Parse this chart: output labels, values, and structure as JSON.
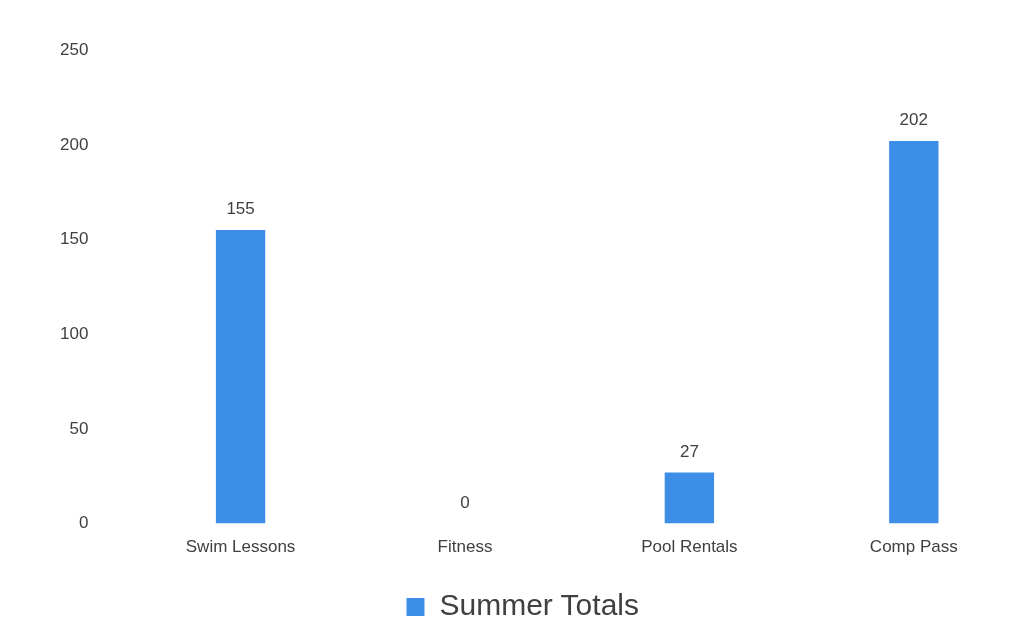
{
  "chart_data": {
    "type": "bar",
    "categories": [
      "Swim Lessons",
      "Fitness",
      "Pool Rentals",
      "Comp Pass"
    ],
    "series": [
      {
        "name": "Summer Totals",
        "color": "#3d8ee6",
        "values": [
          155,
          0,
          27,
          202
        ]
      }
    ],
    "ylim": [
      0,
      250
    ],
    "yticks": [
      0,
      50,
      100,
      150,
      200,
      250
    ],
    "grid": false,
    "legend": "bottom",
    "data_labels": true
  }
}
